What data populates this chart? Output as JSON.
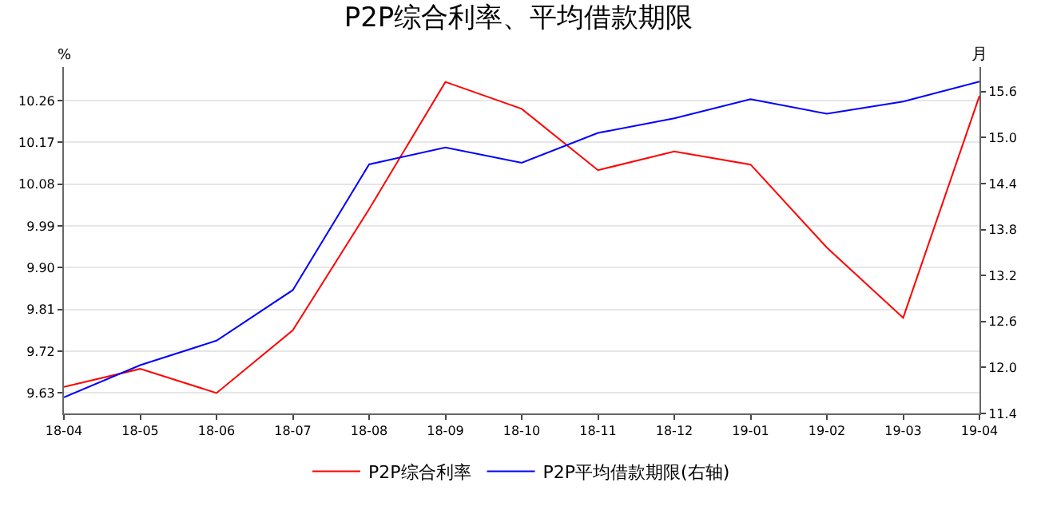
{
  "chart_data": {
    "type": "line",
    "title": "P2P综合利率、平均借款期限",
    "ylabel": "%",
    "y2label": "月",
    "categories": [
      "18-04",
      "18-05",
      "18-06",
      "18-07",
      "18-08",
      "18-09",
      "18-10",
      "18-11",
      "18-12",
      "19-01",
      "19-02",
      "19-03",
      "19-04"
    ],
    "series": [
      {
        "name": "P2P综合利率",
        "color": "#ff0000",
        "values": [
          9.643,
          9.682,
          9.63,
          9.765,
          10.026,
          10.3,
          10.242,
          10.11,
          10.15,
          10.122,
          9.943,
          9.792,
          10.27
        ]
      },
      {
        "name": "P2P平均借款期限(右轴)",
        "color": "#0000ff",
        "axis": "y2",
        "values": [
          11.61,
          12.03,
          12.35,
          13.01,
          14.65,
          14.87,
          14.67,
          15.06,
          15.25,
          15.5,
          15.31,
          15.47,
          15.73
        ]
      }
    ],
    "ylim": [
      9.586,
      10.332
    ],
    "yticks": [
      9.63,
      9.72,
      9.81,
      {
        "value": 9.9,
        "label": "9.90"
      },
      9.99,
      10.08,
      10.17,
      10.26
    ],
    "y2lim": [
      11.4,
      15.92
    ],
    "y2ticks": [
      11.4,
      {
        "value": 12,
        "label": "12.0"
      },
      12.6,
      13.2,
      13.8,
      14.4,
      {
        "value": 15,
        "label": "15.0"
      },
      15.6
    ],
    "grid": "y",
    "legend": "bottom",
    "marker": "none",
    "line_style": "solid"
  }
}
